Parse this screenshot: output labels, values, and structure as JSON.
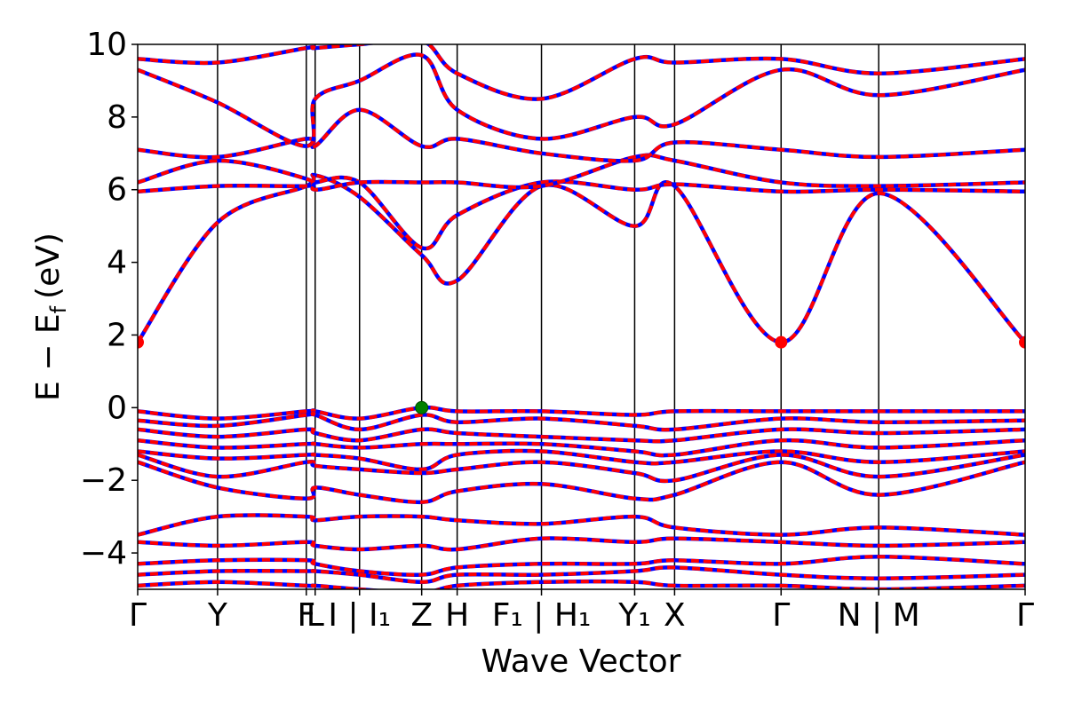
{
  "chart_data": {
    "type": "line",
    "title": "",
    "xlabel": "Wave Vector",
    "ylabel": "E − E",
    "ylabel_sub": "f",
    "ylabel_unit": "(eV)",
    "ylim": [
      -5,
      10
    ],
    "yticks": [
      "10",
      "8",
      "6",
      "4",
      "2",
      "0",
      "−2",
      "−4"
    ],
    "ytick_values": [
      10,
      8,
      6,
      4,
      2,
      0,
      -2,
      -4
    ],
    "grid": false,
    "legend": "none",
    "series_colors": {
      "primary": "#ff0000",
      "overlay": "#0000ff"
    },
    "markers": [
      {
        "name": "cbm",
        "color": "#ff0000",
        "x_label": "Γ",
        "y": 1.8
      },
      {
        "name": "vbm",
        "color": "#008000",
        "x_label": "Z",
        "y": 0.0
      }
    ],
    "kpath": [
      {
        "label": "Γ",
        "x": 0.0
      },
      {
        "label": "Y",
        "x": 0.09
      },
      {
        "label": "F",
        "x": 0.19
      },
      {
        "label": "L",
        "x": 0.2
      },
      {
        "label": "I | I₁",
        "x": 0.25
      },
      {
        "label": "Z",
        "x": 0.32
      },
      {
        "label": "H",
        "x": 0.36
      },
      {
        "label": "F₁ | H₁",
        "x": 0.455
      },
      {
        "label": "Y₁",
        "x": 0.56
      },
      {
        "label": "X",
        "x": 0.605
      },
      {
        "label": "Γ",
        "x": 0.725
      },
      {
        "label": "N | M",
        "x": 0.835
      },
      {
        "label": "Γ",
        "x": 1.0
      }
    ],
    "bands_conduction": [
      {
        "x": [
          0,
          0.09,
          0.19,
          0.2,
          0.25,
          0.32,
          0.36,
          0.455,
          0.56,
          0.605,
          0.725,
          0.835,
          1.0
        ],
        "y": [
          1.8,
          5.1,
          6.1,
          6.4,
          5.8,
          4.2,
          3.5,
          6.1,
          5.0,
          6.1,
          1.8,
          5.9,
          1.8
        ]
      },
      {
        "x": [
          0,
          0.09,
          0.19,
          0.2,
          0.25,
          0.32,
          0.36,
          0.455,
          0.56,
          0.605,
          0.725,
          0.835,
          1.0
        ],
        "y": [
          5.95,
          6.1,
          6.1,
          6.2,
          6.2,
          4.4,
          5.3,
          6.2,
          6.0,
          6.15,
          5.95,
          6.0,
          5.95
        ]
      },
      {
        "x": [
          0,
          0.09,
          0.19,
          0.2,
          0.25,
          0.32,
          0.36,
          0.455,
          0.56,
          0.605,
          0.725,
          0.835,
          1.0
        ],
        "y": [
          6.2,
          6.8,
          6.3,
          6.0,
          6.2,
          6.2,
          6.2,
          6.1,
          6.9,
          6.8,
          6.2,
          6.1,
          6.2
        ]
      },
      {
        "x": [
          0,
          0.09,
          0.19,
          0.2,
          0.25,
          0.32,
          0.36,
          0.455,
          0.56,
          0.605,
          0.725,
          0.835,
          1.0
        ],
        "y": [
          7.1,
          6.9,
          7.4,
          7.2,
          8.2,
          7.2,
          7.4,
          7.0,
          6.8,
          7.3,
          7.1,
          6.9,
          7.1
        ]
      },
      {
        "x": [
          0,
          0.09,
          0.19,
          0.2,
          0.25,
          0.32,
          0.36,
          0.455,
          0.56,
          0.605,
          0.725,
          0.835,
          1.0
        ],
        "y": [
          9.3,
          8.4,
          7.2,
          8.5,
          9.0,
          9.7,
          8.2,
          7.4,
          8.0,
          7.8,
          9.3,
          8.6,
          9.3
        ]
      },
      {
        "x": [
          0,
          0.09,
          0.19,
          0.2,
          0.25,
          0.32,
          0.36,
          0.455,
          0.56,
          0.605,
          0.725,
          0.835,
          1.0
        ],
        "y": [
          9.6,
          9.5,
          9.9,
          9.9,
          10.0,
          10.1,
          9.2,
          8.5,
          9.6,
          9.5,
          9.6,
          9.2,
          9.6
        ]
      }
    ],
    "bands_valence": [
      {
        "x": [
          0,
          0.09,
          0.19,
          0.2,
          0.25,
          0.32,
          0.36,
          0.455,
          0.56,
          0.605,
          0.725,
          0.835,
          1.0
        ],
        "y": [
          -0.1,
          -0.3,
          -0.1,
          -0.1,
          -0.3,
          0.0,
          -0.1,
          -0.1,
          -0.2,
          -0.1,
          -0.1,
          -0.1,
          -0.1
        ]
      },
      {
        "x": [
          0,
          0.09,
          0.19,
          0.2,
          0.25,
          0.32,
          0.36,
          0.455,
          0.56,
          0.605,
          0.725,
          0.835,
          1.0
        ],
        "y": [
          -0.35,
          -0.5,
          -0.2,
          -0.2,
          -0.6,
          -0.2,
          -0.4,
          -0.3,
          -0.5,
          -0.6,
          -0.3,
          -0.4,
          -0.35
        ]
      },
      {
        "x": [
          0,
          0.09,
          0.19,
          0.2,
          0.25,
          0.32,
          0.36,
          0.455,
          0.56,
          0.605,
          0.725,
          0.835,
          1.0
        ],
        "y": [
          -0.6,
          -0.8,
          -0.6,
          -0.7,
          -0.9,
          -0.6,
          -0.7,
          -0.8,
          -0.9,
          -0.9,
          -0.6,
          -0.7,
          -0.6
        ]
      },
      {
        "x": [
          0,
          0.09,
          0.19,
          0.2,
          0.25,
          0.32,
          0.36,
          0.455,
          0.56,
          0.605,
          0.725,
          0.835,
          1.0
        ],
        "y": [
          -0.9,
          -1.1,
          -1.0,
          -1.0,
          -1.1,
          -1.0,
          -1.0,
          -1.0,
          -1.2,
          -1.3,
          -0.9,
          -1.1,
          -0.9
        ]
      },
      {
        "x": [
          0,
          0.09,
          0.19,
          0.2,
          0.25,
          0.32,
          0.36,
          0.455,
          0.56,
          0.605,
          0.725,
          0.835,
          1.0
        ],
        "y": [
          -1.2,
          -1.4,
          -1.3,
          -1.3,
          -1.4,
          -1.7,
          -1.3,
          -1.2,
          -1.5,
          -1.5,
          -1.2,
          -1.5,
          -1.2
        ]
      },
      {
        "x": [
          0,
          0.09,
          0.19,
          0.2,
          0.25,
          0.32,
          0.36,
          0.455,
          0.56,
          0.605,
          0.725,
          0.835,
          1.0
        ],
        "y": [
          -1.3,
          -1.9,
          -1.5,
          -1.6,
          -1.7,
          -1.8,
          -1.7,
          -1.5,
          -1.8,
          -2.0,
          -1.3,
          -1.9,
          -1.3
        ]
      },
      {
        "x": [
          0,
          0.09,
          0.19,
          0.2,
          0.25,
          0.32,
          0.36,
          0.455,
          0.56,
          0.605,
          0.725,
          0.835,
          1.0
        ],
        "y": [
          -1.5,
          -2.2,
          -2.5,
          -2.2,
          -2.4,
          -2.6,
          -2.3,
          -2.1,
          -2.5,
          -2.4,
          -1.5,
          -2.4,
          -1.5
        ]
      },
      {
        "x": [
          0,
          0.09,
          0.19,
          0.2,
          0.25,
          0.32,
          0.36,
          0.455,
          0.56,
          0.605,
          0.725,
          0.835,
          1.0
        ],
        "y": [
          -3.5,
          -3.0,
          -3.0,
          -3.1,
          -3.0,
          -3.0,
          -3.1,
          -3.2,
          -3.0,
          -3.3,
          -3.5,
          -3.3,
          -3.5
        ]
      },
      {
        "x": [
          0,
          0.09,
          0.19,
          0.2,
          0.25,
          0.32,
          0.36,
          0.455,
          0.56,
          0.605,
          0.725,
          0.835,
          1.0
        ],
        "y": [
          -3.7,
          -3.8,
          -3.7,
          -3.8,
          -3.9,
          -3.8,
          -3.9,
          -3.6,
          -3.7,
          -3.6,
          -3.7,
          -3.8,
          -3.7
        ]
      },
      {
        "x": [
          0,
          0.09,
          0.19,
          0.2,
          0.25,
          0.32,
          0.36,
          0.455,
          0.56,
          0.605,
          0.725,
          0.835,
          1.0
        ],
        "y": [
          -4.3,
          -4.2,
          -4.2,
          -4.3,
          -4.5,
          -4.6,
          -4.4,
          -4.3,
          -4.3,
          -4.2,
          -4.3,
          -4.1,
          -4.3
        ]
      },
      {
        "x": [
          0,
          0.09,
          0.19,
          0.2,
          0.25,
          0.32,
          0.36,
          0.455,
          0.56,
          0.605,
          0.725,
          0.835,
          1.0
        ],
        "y": [
          -4.6,
          -4.5,
          -4.5,
          -4.5,
          -4.6,
          -4.8,
          -4.6,
          -4.6,
          -4.5,
          -4.4,
          -4.6,
          -4.7,
          -4.6
        ]
      },
      {
        "x": [
          0,
          0.09,
          0.19,
          0.2,
          0.25,
          0.32,
          0.36,
          0.455,
          0.56,
          0.605,
          0.725,
          0.835,
          1.0
        ],
        "y": [
          -4.9,
          -4.8,
          -4.9,
          -4.9,
          -5.0,
          -5.1,
          -4.9,
          -4.8,
          -4.8,
          -4.9,
          -4.9,
          -5.0,
          -4.9
        ]
      }
    ]
  }
}
